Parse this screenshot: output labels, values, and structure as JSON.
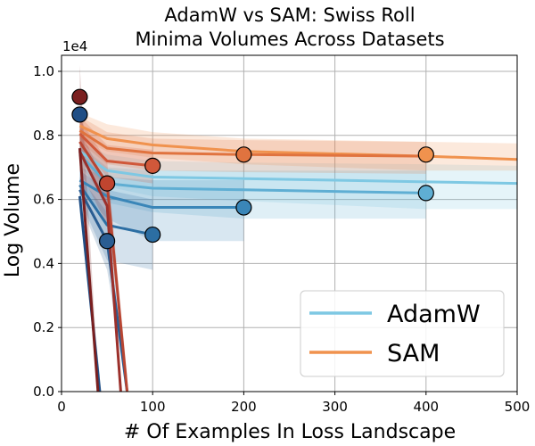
{
  "chart_data": {
    "type": "line",
    "title_lines": [
      "AdamW vs SAM: Swiss Roll",
      "Minima Volumes Across Datasets"
    ],
    "xlabel": "# Of Examples In Loss Landscape",
    "ylabel": "Log Volume",
    "y_offset_label": "1e4",
    "xlim": [
      0,
      500
    ],
    "ylim": [
      0,
      10500
    ],
    "x_ticks": [
      0,
      100,
      200,
      300,
      400,
      500
    ],
    "x_tick_labels": [
      "0",
      "100",
      "200",
      "300",
      "400",
      "500"
    ],
    "y_ticks": [
      0,
      2000,
      4000,
      6000,
      8000,
      10000
    ],
    "y_tick_labels": [
      "0.0",
      "0.2",
      "0.4",
      "0.6",
      "0.8",
      "1.0"
    ],
    "grid": true,
    "legend": {
      "location": "lower-right",
      "entries": [
        {
          "label": "AdamW",
          "color": "#7ec8e3"
        },
        {
          "label": "SAM",
          "color": "#f0924e"
        }
      ]
    },
    "series": [
      {
        "name": "AdamW",
        "color": "#7ec8e3",
        "x": [
          20,
          50,
          100,
          200,
          400,
          500
        ],
        "y": [
          7500,
          6900,
          6700,
          6650,
          6550,
          6500
        ],
        "band": [
          [
            7800,
            7200
          ],
          [
            7400,
            6400
          ],
          [
            7200,
            6100
          ],
          [
            7150,
            5950
          ],
          [
            7100,
            5700
          ],
          [
            7050,
            5700
          ]
        ]
      },
      {
        "name": "AdamW",
        "color": "#5faed3",
        "x": [
          20,
          50,
          100,
          200,
          400
        ],
        "y": [
          7400,
          6500,
          6350,
          6300,
          6200
        ],
        "band": [
          [
            7700,
            7100
          ],
          [
            7000,
            5900
          ],
          [
            6900,
            5600
          ],
          [
            6900,
            5400
          ],
          [
            6900,
            5400
          ]
        ]
      },
      {
        "name": "AdamW",
        "color": "#3a86b8",
        "x": [
          20,
          50,
          100,
          200
        ],
        "y": [
          6600,
          6100,
          5750,
          5750
        ],
        "band": [
          [
            7000,
            6300
          ],
          [
            6700,
            5400
          ],
          [
            6600,
            4700
          ],
          [
            6600,
            4700
          ]
        ]
      },
      {
        "name": "AdamW",
        "color": "#2c6ea3",
        "x": [
          20,
          50,
          100
        ],
        "y": [
          6450,
          5200,
          4900
        ],
        "band": [
          [
            6900,
            6000
          ],
          [
            6300,
            4100
          ],
          [
            6000,
            3800
          ]
        ]
      },
      {
        "name": "AdamW",
        "color": "#2a5d92",
        "x": [
          20,
          50,
          72
        ],
        "y": [
          6300,
          4700,
          0
        ],
        "band": [
          [
            6700,
            5900
          ],
          [
            5600,
            3800
          ],
          [
            500,
            0
          ]
        ]
      },
      {
        "name": "AdamW",
        "color": "#1f4e85",
        "x": [
          20,
          42
        ],
        "y": [
          6100,
          0
        ],
        "band": [
          [
            6600,
            5600
          ],
          [
            500,
            0
          ]
        ]
      },
      {
        "name": "SAM",
        "color": "#f0924e",
        "x": [
          20,
          50,
          100,
          200,
          400,
          500
        ],
        "y": [
          8300,
          7900,
          7700,
          7500,
          7350,
          7250
        ],
        "band": [
          [
            8700,
            7900
          ],
          [
            8350,
            7500
          ],
          [
            8100,
            7300
          ],
          [
            7900,
            7100
          ],
          [
            7800,
            6900
          ],
          [
            7750,
            6900
          ]
        ]
      },
      {
        "name": "SAM",
        "color": "#e0733f",
        "x": [
          20,
          50,
          100,
          200,
          400
        ],
        "y": [
          8150,
          7600,
          7450,
          7400,
          7350
        ],
        "band": [
          [
            8600,
            7800
          ],
          [
            8100,
            7100
          ],
          [
            7900,
            6900
          ],
          [
            7850,
            6850
          ],
          [
            7800,
            6800
          ]
        ]
      },
      {
        "name": "SAM",
        "color": "#d0583a",
        "x": [
          20,
          50,
          100
        ],
        "y": [
          8050,
          7200,
          7050
        ],
        "band": [
          [
            8600,
            7700
          ],
          [
            7700,
            6700
          ],
          [
            7550,
            6500
          ]
        ]
      },
      {
        "name": "SAM",
        "color": "#b84532",
        "x": [
          20,
          50,
          72
        ],
        "y": [
          7800,
          6500,
          0
        ],
        "band": [
          [
            8500,
            7400
          ],
          [
            7200,
            5700
          ],
          [
            500,
            0
          ]
        ]
      },
      {
        "name": "SAM",
        "color": "#9c302b",
        "x": [
          20,
          50,
          65
        ],
        "y": [
          7500,
          5800,
          0
        ],
        "band": [
          [
            8200,
            6900
          ],
          [
            6400,
            5200
          ],
          [
            500,
            0
          ]
        ]
      },
      {
        "name": "SAM",
        "color": "#7a1f1f",
        "x": [
          20,
          40
        ],
        "y": [
          7600,
          0
        ],
        "band": [
          [
            10200,
            7000
          ],
          [
            500,
            0
          ]
        ]
      }
    ],
    "markers": [
      {
        "x": 20,
        "y": 9200,
        "color": "#7a1f1f"
      },
      {
        "x": 20,
        "y": 8650,
        "color": "#1f4e85"
      },
      {
        "x": 50,
        "y": 6500,
        "color": "#c0452f"
      },
      {
        "x": 50,
        "y": 4700,
        "color": "#2a5d92"
      },
      {
        "x": 100,
        "y": 7050,
        "color": "#d0583a"
      },
      {
        "x": 100,
        "y": 4900,
        "color": "#2c6ea3"
      },
      {
        "x": 200,
        "y": 7400,
        "color": "#e0733f"
      },
      {
        "x": 200,
        "y": 5750,
        "color": "#3a86b8"
      },
      {
        "x": 400,
        "y": 7400,
        "color": "#f0924e"
      },
      {
        "x": 400,
        "y": 6200,
        "color": "#5faed3"
      }
    ]
  }
}
